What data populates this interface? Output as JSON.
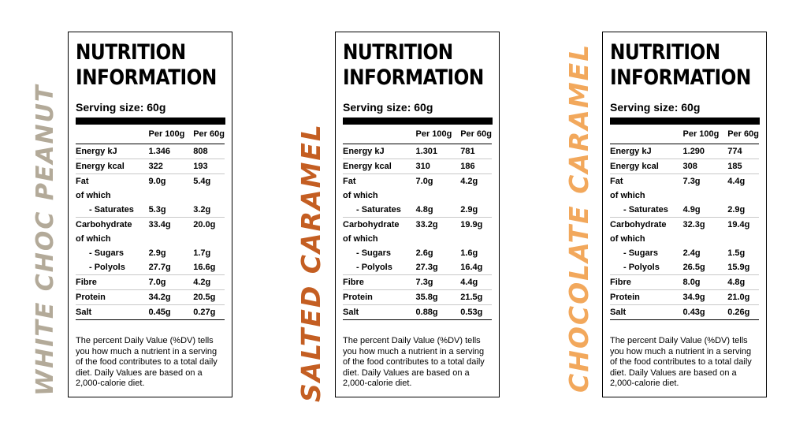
{
  "colors": {
    "flavor_1": "#b3aa99",
    "flavor_2": "#c45e22",
    "flavor_3": "#f2a85c"
  },
  "labels": {
    "title_line1": "NUTRITION",
    "title_line2": "INFORMATION",
    "serving": "Serving size: 60g",
    "col_100": "Per 100g",
    "col_60": "Per 60g",
    "energy_kj": "Energy kJ",
    "energy_kcal": "Energy kcal",
    "fat": "Fat",
    "of_which": "of which",
    "saturates": "- Saturates",
    "carbohydrate": "Carbohydrate",
    "sugars": "- Sugars",
    "polyols": "- Polyols",
    "fibre": "Fibre",
    "protein": "Protein",
    "salt": "Salt",
    "note": "The percent Daily Value (%DV) tells you how much a nutrient in a serving of the food contributes to a total daily diet. Daily Values are based on a 2,000-calorie diet."
  },
  "products": [
    {
      "flavor": "WHITE CHOC PEANUT",
      "values": {
        "energy_kj": [
          "1.346",
          "808"
        ],
        "energy_kcal": [
          "322",
          "193"
        ],
        "fat": [
          "9.0g",
          "5.4g"
        ],
        "saturates": [
          "5.3g",
          "3.2g"
        ],
        "carbohydrate": [
          "33.4g",
          "20.0g"
        ],
        "sugars": [
          "2.9g",
          "1.7g"
        ],
        "polyols": [
          "27.7g",
          "16.6g"
        ],
        "fibre": [
          "7.0g",
          "4.2g"
        ],
        "protein": [
          "34.2g",
          "20.5g"
        ],
        "salt": [
          "0.45g",
          "0.27g"
        ]
      }
    },
    {
      "flavor": "SALTED CARAMEL",
      "values": {
        "energy_kj": [
          "1.301",
          "781"
        ],
        "energy_kcal": [
          "310",
          "186"
        ],
        "fat": [
          "7.0g",
          "4.2g"
        ],
        "saturates": [
          "4.8g",
          "2.9g"
        ],
        "carbohydrate": [
          "33.2g",
          "19.9g"
        ],
        "sugars": [
          "2.6g",
          "1.6g"
        ],
        "polyols": [
          "27.3g",
          "16.4g"
        ],
        "fibre": [
          "7.3g",
          "4.4g"
        ],
        "protein": [
          "35.8g",
          "21.5g"
        ],
        "salt": [
          "0.88g",
          "0.53g"
        ]
      }
    },
    {
      "flavor": "CHOCOLATE CARAMEL",
      "values": {
        "energy_kj": [
          "1.290",
          "774"
        ],
        "energy_kcal": [
          "308",
          "185"
        ],
        "fat": [
          "7.3g",
          "4.4g"
        ],
        "saturates": [
          "4.9g",
          "2.9g"
        ],
        "carbohydrate": [
          "32.3g",
          "19.4g"
        ],
        "sugars": [
          "2.4g",
          "1.5g"
        ],
        "polyols": [
          "26.5g",
          "15.9g"
        ],
        "fibre": [
          "8.0g",
          "4.8g"
        ],
        "protein": [
          "34.9g",
          "21.0g"
        ],
        "salt": [
          "0.43g",
          "0.26g"
        ]
      }
    }
  ]
}
